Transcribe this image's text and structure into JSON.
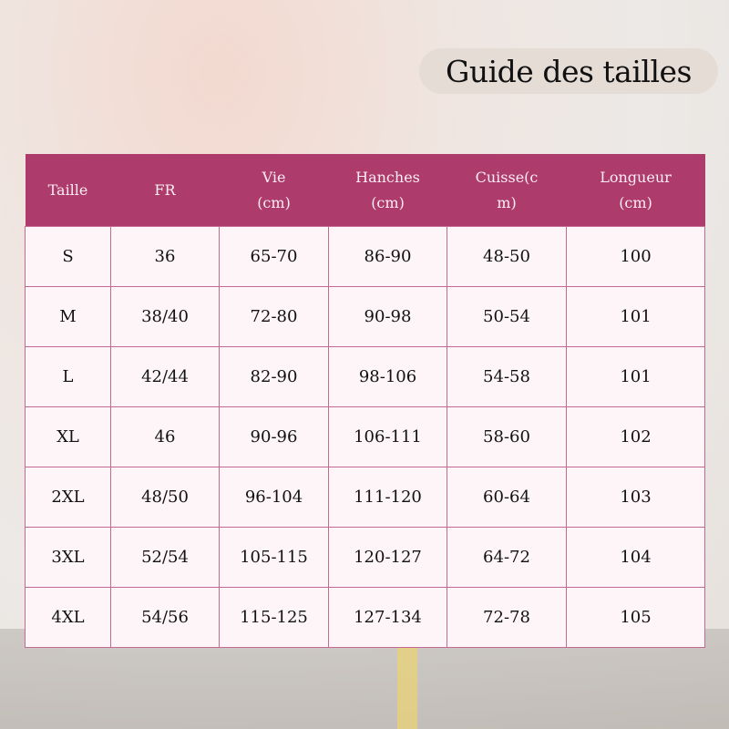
{
  "title": "Guide des tailles",
  "colors": {
    "header_bg": "#ad3b6b",
    "cell_bg": "#fdf5f8",
    "border": "#c46a92"
  },
  "table": {
    "headers": [
      {
        "l1": "Taille",
        "l2": ""
      },
      {
        "l1": "FR",
        "l2": ""
      },
      {
        "l1": "Vie",
        "l2": "(cm)"
      },
      {
        "l1": "Hanches",
        "l2": "(cm)"
      },
      {
        "l1": "Cuisse(c",
        "l2": "m)"
      },
      {
        "l1": "Longueur",
        "l2": "(cm)"
      }
    ],
    "rows": [
      [
        "S",
        "36",
        "65-70",
        "86-90",
        "48-50",
        "100"
      ],
      [
        "M",
        "38/40",
        "72-80",
        "90-98",
        "50-54",
        "101"
      ],
      [
        "L",
        "42/44",
        "82-90",
        "98-106",
        "54-58",
        "101"
      ],
      [
        "XL",
        "46",
        "90-96",
        "106-111",
        "58-60",
        "102"
      ],
      [
        "2XL",
        "48/50",
        "96-104",
        "111-120",
        "60-64",
        "103"
      ],
      [
        "3XL",
        "52/54",
        "105-115",
        "120-127",
        "64-72",
        "104"
      ],
      [
        "4XL",
        "54/56",
        "115-125",
        "127-134",
        "72-78",
        "105"
      ]
    ]
  }
}
